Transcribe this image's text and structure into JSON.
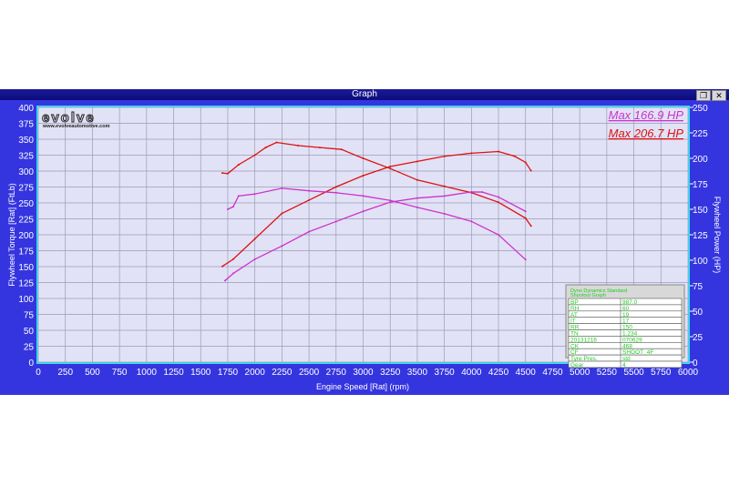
{
  "window": {
    "title": "Graph",
    "restore_icon": "restore-icon",
    "close_icon": "close-icon"
  },
  "logo": {
    "text": "evolve",
    "url_text": "www.evolveautomotive.com"
  },
  "annotations": [
    {
      "text": "Max 166.9 HP",
      "color": "#cc33cc"
    },
    {
      "text": "Max 206.7 HP",
      "color": "#dd1111"
    }
  ],
  "info_table": {
    "title": [
      "Dyno Dynamics Standard",
      "Shootout Graph"
    ],
    "rows": [
      [
        "BP",
        "987.0"
      ],
      [
        "RH",
        "60"
      ],
      [
        "AT",
        "19"
      ],
      [
        "IT",
        "17"
      ],
      [
        "RR",
        "150"
      ],
      [
        "TN",
        "1.234"
      ],
      [
        "20131216",
        "070629"
      ],
      [
        "CK",
        "468"
      ],
      [
        "CF",
        "SHOOT_4F"
      ],
      [
        "Tyre Pres.",
        "std"
      ],
      [
        "Gear",
        "4"
      ]
    ]
  },
  "chart_data": {
    "type": "line",
    "xlabel": "Engine Speed [Rat] (rpm)",
    "ylabel": "Flywheel Torque [Rat] (FtLb)",
    "y2label": "Flywheel Power (HP)",
    "xlim": [
      0,
      6000
    ],
    "ylim": [
      0,
      400
    ],
    "y2lim": [
      0,
      250
    ],
    "xticks": [
      0,
      250,
      500,
      750,
      1000,
      1250,
      1500,
      1750,
      2000,
      2250,
      2500,
      2750,
      3000,
      3250,
      3500,
      3750,
      4000,
      4250,
      4500,
      4750,
      5000,
      5250,
      5500,
      5750,
      6000
    ],
    "yticks": [
      0,
      25,
      50,
      75,
      100,
      125,
      150,
      175,
      200,
      225,
      250,
      275,
      300,
      325,
      350,
      375,
      400
    ],
    "y2ticks": [
      0,
      25,
      50,
      75,
      100,
      125,
      150,
      175,
      200,
      225,
      250
    ],
    "grid": true,
    "series": [
      {
        "axis": "left",
        "color": "#dd1111",
        "x": [
          1700,
          1750,
          1850,
          2000,
          2100,
          2200,
          2400,
          2600,
          2800,
          3000,
          3250,
          3500,
          3750,
          4000,
          4250,
          4500,
          4550
        ],
        "y": [
          297,
          296,
          310,
          325,
          337,
          345,
          340,
          337,
          334,
          320,
          304,
          286,
          276,
          266,
          251,
          226,
          214
        ]
      },
      {
        "axis": "right",
        "color": "#dd1111",
        "x": [
          1700,
          1800,
          2000,
          2250,
          2500,
          2750,
          3000,
          3250,
          3500,
          3750,
          4000,
          4250,
          4400,
          4500,
          4550
        ],
        "y": [
          94,
          101,
          121,
          146,
          159,
          172,
          183,
          192,
          197,
          202,
          205,
          206.7,
          202,
          196,
          188
        ]
      },
      {
        "axis": "left",
        "color": "#cc33cc",
        "x": [
          1750,
          1800,
          1850,
          2000,
          2250,
          2500,
          2750,
          3000,
          3250,
          3500,
          3750,
          4000,
          4250,
          4500
        ],
        "y": [
          240,
          244,
          261,
          264,
          273,
          269,
          266,
          261,
          254,
          243,
          233,
          221,
          200,
          161
        ]
      },
      {
        "axis": "right",
        "color": "#cc33cc",
        "x": [
          1725,
          1800,
          2000,
          2250,
          2500,
          2750,
          3000,
          3250,
          3500,
          3750,
          4000,
          4100,
          4250,
          4500
        ],
        "y": [
          80,
          87,
          101,
          114,
          128,
          138,
          148,
          157,
          161,
          163,
          167,
          166.9,
          162,
          148
        ]
      }
    ]
  }
}
